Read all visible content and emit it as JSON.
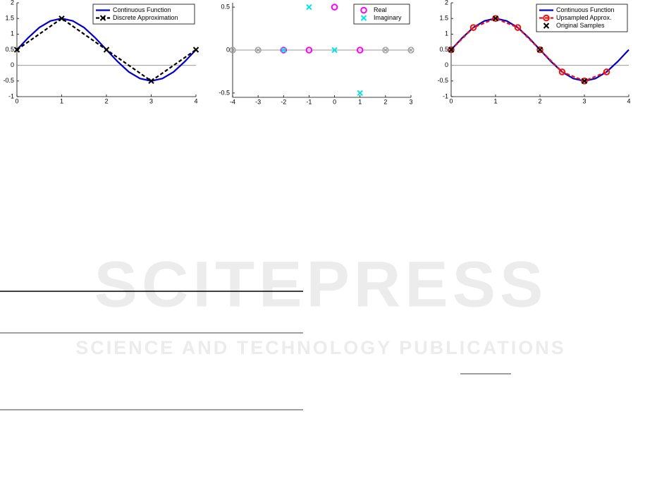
{
  "watermark": {
    "title": "SCITEPRESS",
    "subtitle": "SCIENCE AND TECHNOLOGY PUBLICATIONS"
  },
  "chart_data": [
    {
      "type": "line",
      "xlim": [
        0,
        4
      ],
      "xticks": [
        0,
        1,
        2,
        3,
        4
      ],
      "ylim": [
        -1,
        2
      ],
      "yticks": [
        -1,
        -0.5,
        0,
        0.5,
        1,
        1.5,
        2
      ],
      "zero_line": true,
      "legend": "upper right",
      "series": [
        {
          "name": "Continuous Function",
          "color": "#0000cc",
          "dash": false,
          "marker": "none",
          "x": [
            0,
            0.25,
            0.5,
            0.75,
            1,
            1.25,
            1.5,
            1.75,
            2,
            2.25,
            2.5,
            2.75,
            3,
            3.25,
            3.5,
            3.75,
            4
          ],
          "values": [
            0.5,
            0.88,
            1.21,
            1.42,
            1.5,
            1.42,
            1.21,
            0.88,
            0.5,
            0.12,
            -0.21,
            -0.42,
            -0.5,
            -0.42,
            -0.21,
            0.12,
            0.5
          ]
        },
        {
          "name": "Discrete Approximation",
          "color": "#000000",
          "dash": true,
          "marker": "x",
          "x": [
            0,
            1,
            2,
            3,
            4
          ],
          "values": [
            0.5,
            1.5,
            0.5,
            -0.5,
            0.5
          ]
        }
      ]
    },
    {
      "type": "scatter",
      "xlim": [
        -4,
        3
      ],
      "xticks": [
        -4,
        -3,
        -2,
        -1,
        0,
        1,
        2,
        3
      ],
      "ylim": [
        -0.55,
        0.55
      ],
      "yticks": [
        -0.5,
        0,
        0.5
      ],
      "zero_line": true,
      "legend": "upper right",
      "series": [
        {
          "name": "Real",
          "color": "#ff00ff",
          "marker": "o",
          "x": [
            -2,
            -1,
            0,
            1
          ],
          "values": [
            0,
            0,
            0.5,
            0
          ]
        },
        {
          "name": "Imaginary",
          "color": "#00e5e5",
          "marker": "x",
          "x": [
            -2,
            -1,
            0,
            1
          ],
          "values": [
            0,
            0.5,
            0,
            -0.5
          ]
        },
        {
          "color": "#999999",
          "marker": "otimes",
          "x": [
            -4,
            -3,
            2,
            3
          ],
          "values": [
            0,
            0,
            0,
            0
          ]
        }
      ]
    },
    {
      "type": "line",
      "xlim": [
        0,
        4
      ],
      "xticks": [
        0,
        1,
        2,
        3,
        4
      ],
      "ylim": [
        -1,
        2
      ],
      "yticks": [
        -1,
        -0.5,
        0,
        0.5,
        1,
        1.5,
        2
      ],
      "zero_line": true,
      "legend": "upper right",
      "series": [
        {
          "name": "Continuous Function",
          "color": "#0000cc",
          "dash": false,
          "marker": "none",
          "x": [
            0,
            0.25,
            0.5,
            0.75,
            1,
            1.25,
            1.5,
            1.75,
            2,
            2.25,
            2.5,
            2.75,
            3,
            3.25,
            3.5,
            3.75,
            4
          ],
          "values": [
            0.5,
            0.88,
            1.21,
            1.42,
            1.5,
            1.42,
            1.21,
            0.88,
            0.5,
            0.12,
            -0.21,
            -0.42,
            -0.5,
            -0.42,
            -0.21,
            0.12,
            0.5
          ]
        },
        {
          "name": "Upsampled Approx.",
          "color": "#ee1111",
          "dash": true,
          "marker": "o",
          "x": [
            0,
            0.5,
            1,
            1.5,
            2,
            2.5,
            3,
            3.5
          ],
          "values": [
            0.5,
            1.21,
            1.5,
            1.21,
            0.5,
            -0.21,
            -0.5,
            -0.21
          ]
        },
        {
          "name": "Original Samples",
          "color": "#000000",
          "dash": false,
          "marker": "x",
          "noline": true,
          "x": [
            0,
            1,
            2,
            3
          ],
          "values": [
            0.5,
            1.5,
            0.5,
            -0.5
          ]
        }
      ]
    }
  ]
}
